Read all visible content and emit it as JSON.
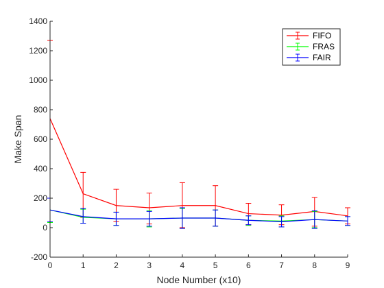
{
  "chart_data": {
    "type": "line",
    "title": "",
    "xlabel": "Node Number (x10)",
    "ylabel": "Make Span",
    "xlim": [
      0,
      9
    ],
    "ylim": [
      -200,
      1400
    ],
    "xticks": [
      "0",
      "1",
      "2",
      "3",
      "4",
      "5",
      "6",
      "7",
      "8",
      "9"
    ],
    "yticks": [
      "-200",
      "0",
      "200",
      "400",
      "600",
      "800",
      "1000",
      "1200",
      "1400"
    ],
    "x": [
      0,
      1,
      2,
      3,
      4,
      5,
      6,
      7,
      8,
      9
    ],
    "grid": false,
    "legend_position": "top-right",
    "error_bars": true,
    "series": [
      {
        "name": "FIFO",
        "color": "#ff0000",
        "values": [
          740,
          230,
          150,
          135,
          150,
          150,
          95,
          85,
          110,
          80
        ],
        "err_low": [
          540,
          160,
          110,
          110,
          150,
          140,
          75,
          65,
          100,
          55
        ],
        "err_high": [
          530,
          145,
          110,
          100,
          155,
          135,
          70,
          70,
          95,
          55
        ]
      },
      {
        "name": "FRAS",
        "color": "#00ff00",
        "values": [
          120,
          70,
          60,
          60,
          65,
          65,
          50,
          45,
          55,
          45
        ],
        "err_low": [
          85,
          40,
          45,
          55,
          70,
          55,
          35,
          40,
          55,
          30
        ],
        "err_high": [
          80,
          55,
          45,
          55,
          65,
          55,
          30,
          35,
          55,
          30
        ]
      },
      {
        "name": "FAIR",
        "color": "#0000ff",
        "values": [
          120,
          75,
          60,
          60,
          65,
          65,
          50,
          40,
          55,
          45
        ],
        "err_low": [
          80,
          45,
          45,
          50,
          70,
          55,
          30,
          35,
          60,
          30
        ],
        "err_high": [
          80,
          55,
          45,
          50,
          70,
          55,
          30,
          35,
          60,
          30
        ]
      }
    ]
  }
}
